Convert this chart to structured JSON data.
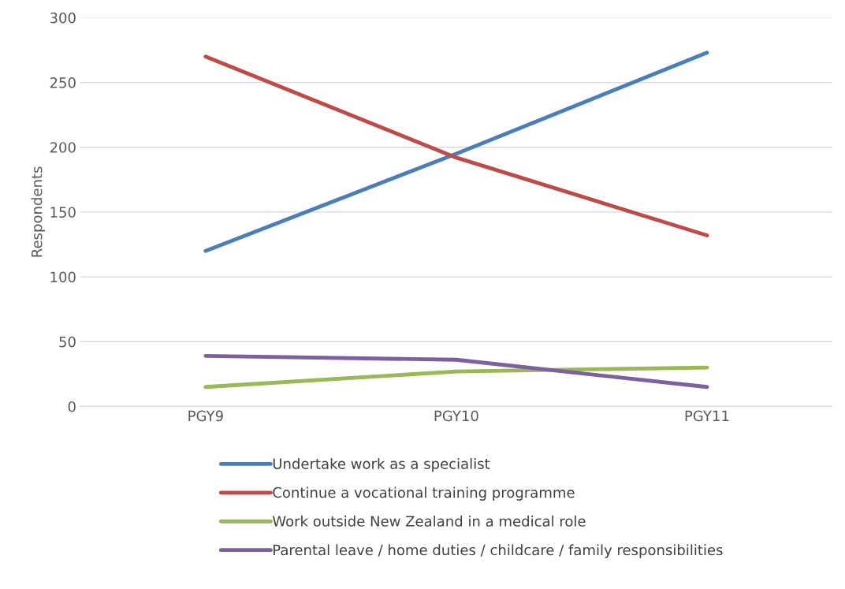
{
  "chart_data": {
    "type": "line",
    "ylabel": "Respondents",
    "categories": [
      "PGY9",
      "PGY10",
      "PGY11"
    ],
    "series": [
      {
        "name": "Undertake work as a specialist",
        "color": "#4a7ebb",
        "values": [
          120,
          195,
          273
        ]
      },
      {
        "name": "Continue a vocational training programme",
        "color": "#be4b48",
        "values": [
          270,
          192,
          132
        ]
      },
      {
        "name": "Work outside New Zealand in a medical role",
        "color": "#98b954",
        "values": [
          15,
          27,
          30
        ]
      },
      {
        "name": "Parental leave / home duties / childcare / family responsibilities",
        "color": "#7d60a0",
        "values": [
          39,
          36,
          15
        ]
      }
    ],
    "ylim": [
      0,
      300
    ],
    "yticks": [
      0,
      50,
      100,
      150,
      200,
      250,
      300
    ],
    "grid": "y",
    "legend": "bottom",
    "marker": "none",
    "line_style": "solid"
  }
}
